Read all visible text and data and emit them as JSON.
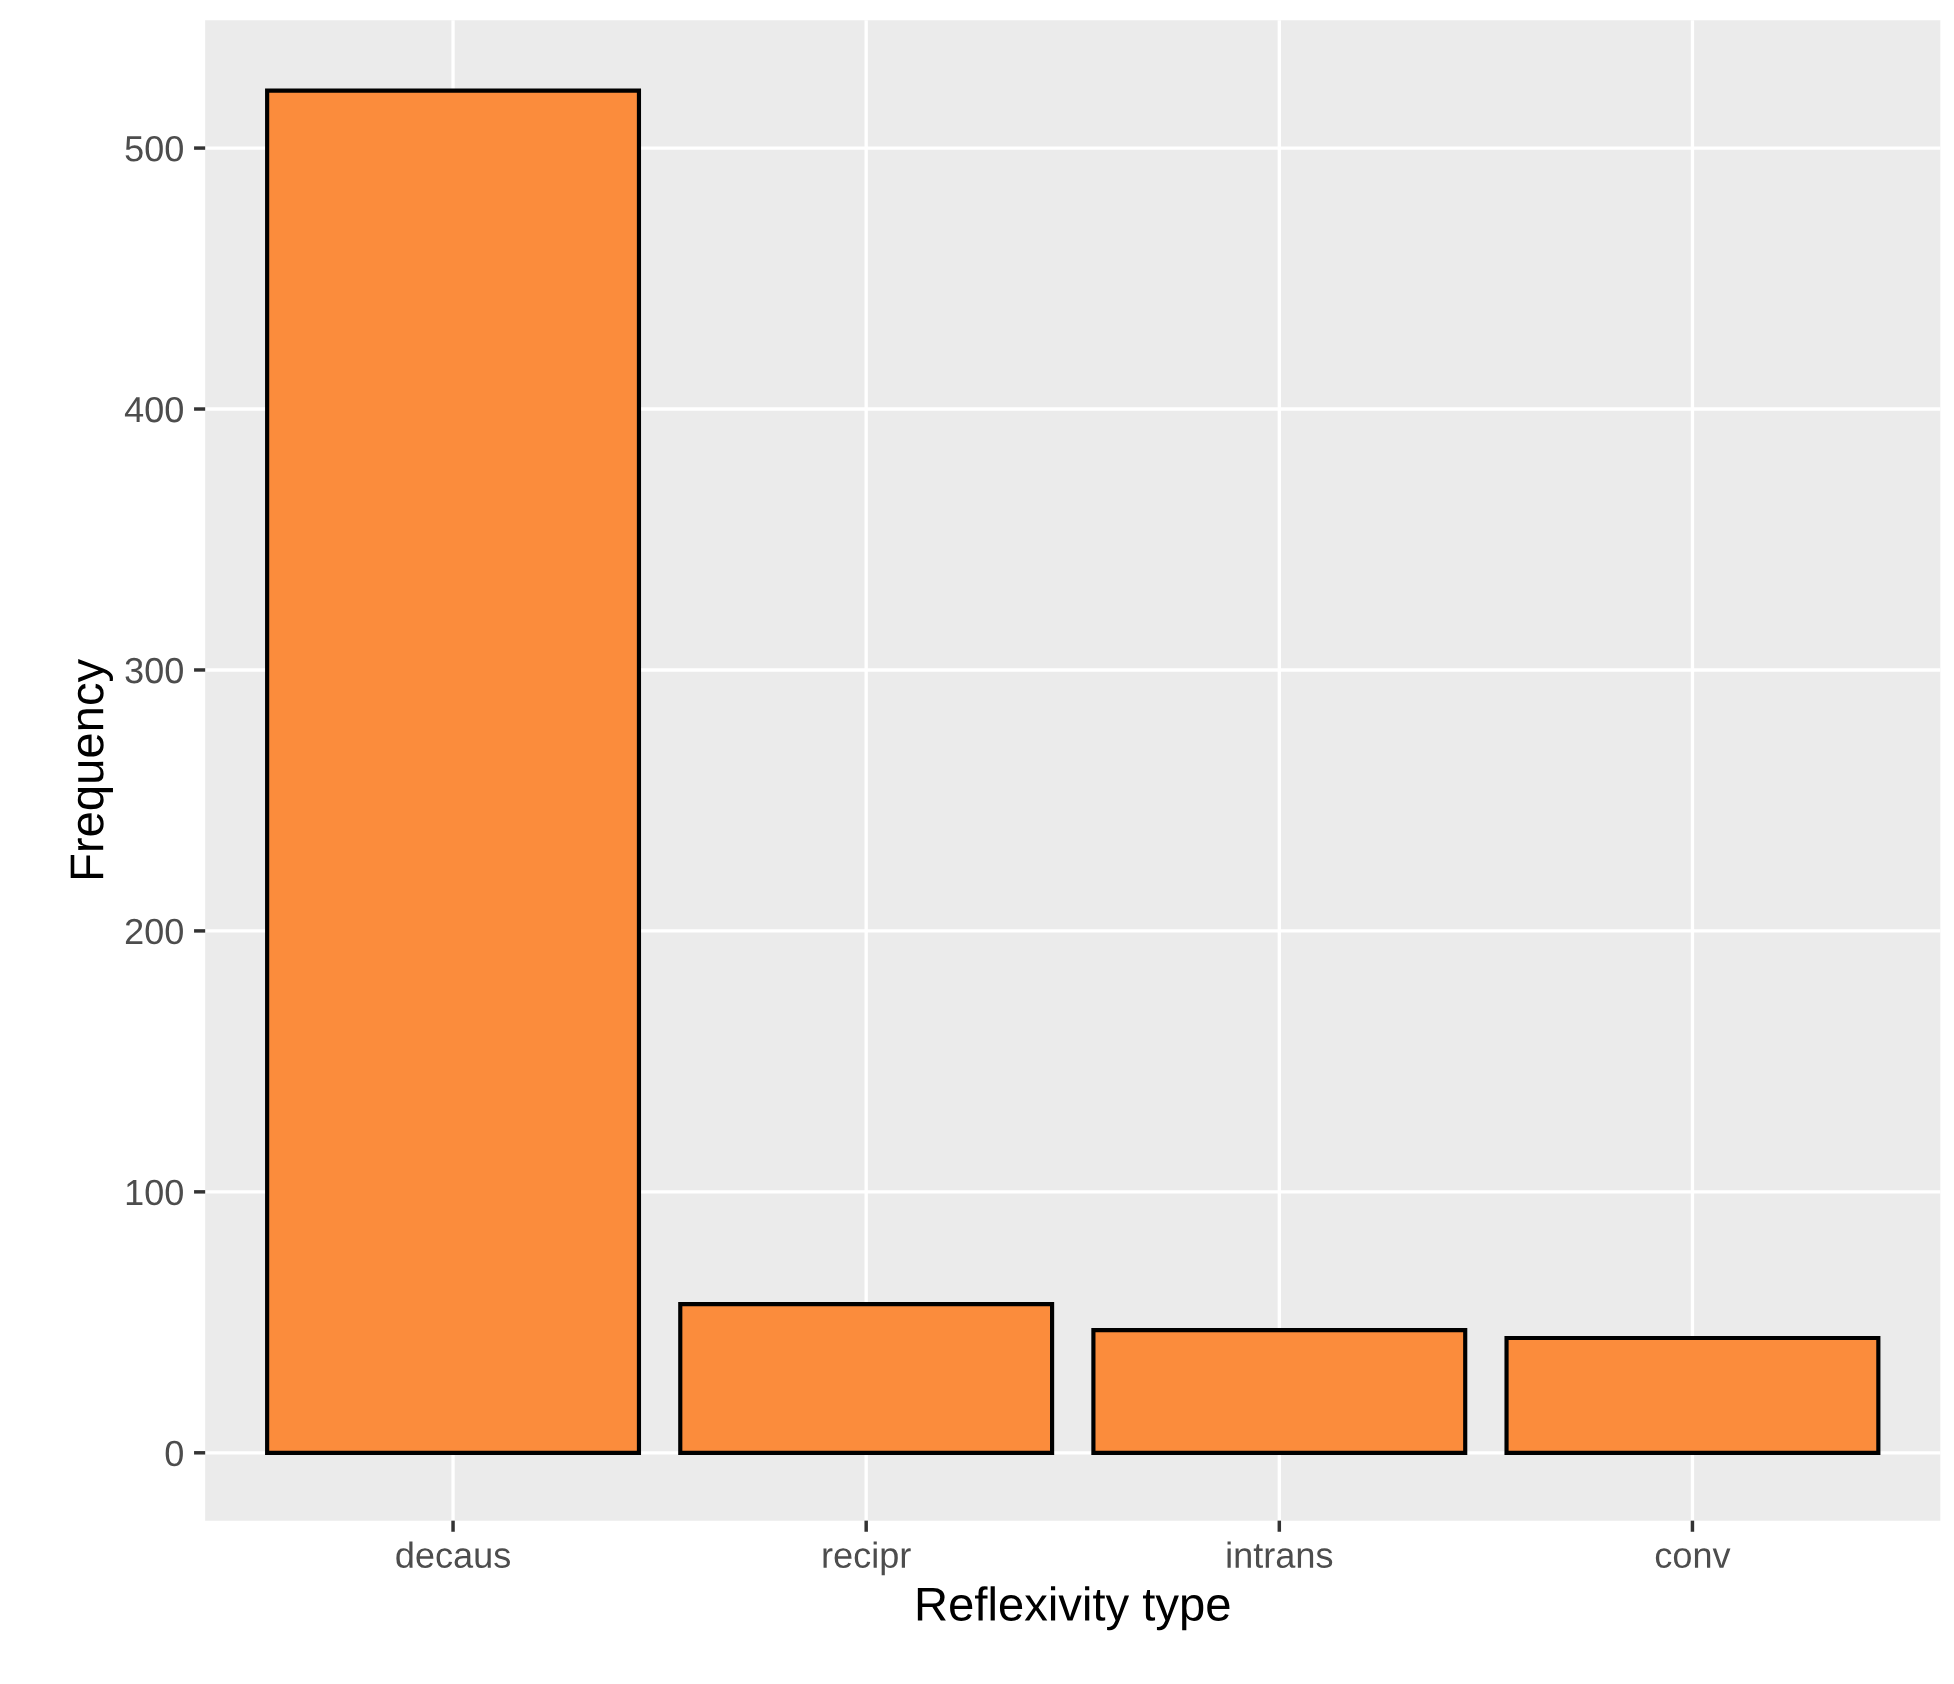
{
  "chart_data": {
    "type": "bar",
    "xlabel": "Reflexivity type",
    "ylabel": "Frequency",
    "categories": [
      "decaus",
      "recipr",
      "intrans",
      "conv"
    ],
    "values": [
      522,
      57,
      47,
      44
    ],
    "color": "#fb8c3c",
    "ylim": [
      -26,
      549
    ],
    "yticks": [
      0,
      100,
      200,
      300,
      400,
      500
    ],
    "grid": true
  }
}
